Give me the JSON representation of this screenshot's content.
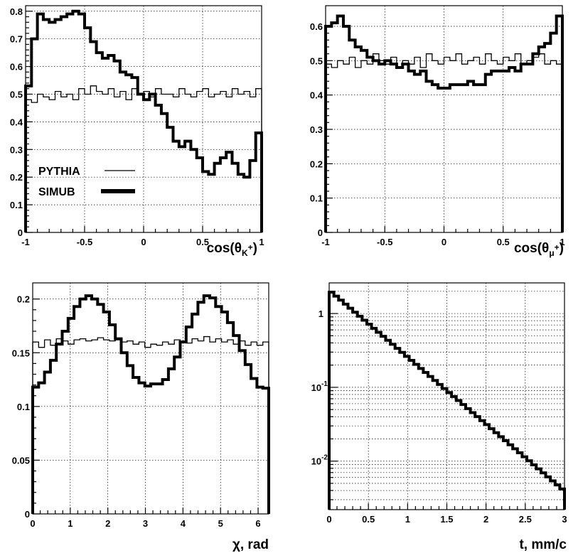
{
  "chart_data": [
    {
      "type": "line",
      "xlabel": "cos(θ_K+)",
      "xlabel_parts": {
        "base": "cos(θ",
        "sub": "K",
        "sup": "+",
        "close": ")"
      },
      "xlim": [
        -1,
        1
      ],
      "ylim": [
        0,
        0.82
      ],
      "x_ticks": [
        "-1",
        "-0.5",
        "0",
        "0.5",
        "1"
      ],
      "x_tick_values": [
        -1,
        -0.5,
        0,
        0.5,
        1
      ],
      "y_ticks": [
        "0",
        "0.1",
        "0.2",
        "0.3",
        "0.4",
        "0.5",
        "0.6",
        "0.7",
        "0.8"
      ],
      "y_tick_values": [
        0,
        0.1,
        0.2,
        0.3,
        0.4,
        0.5,
        0.6,
        0.7,
        0.8
      ],
      "grid": true,
      "legend": {
        "placement": "bottom-left",
        "entries": [
          {
            "label": "PYTHIA",
            "style": "thin"
          },
          {
            "label": "SIMUB",
            "style": "thick"
          }
        ]
      },
      "series": [
        {
          "name": "PYTHIA",
          "style": "thin",
          "x_range": [
            -1,
            1
          ],
          "values": [
            0.48,
            0.47,
            0.5,
            0.49,
            0.48,
            0.51,
            0.49,
            0.5,
            0.48,
            0.52,
            0.5,
            0.53,
            0.51,
            0.5,
            0.52,
            0.49,
            0.51,
            0.48,
            0.52,
            0.5,
            0.51,
            0.49,
            0.52,
            0.5,
            0.5,
            0.49,
            0.52,
            0.5,
            0.49,
            0.51,
            0.52,
            0.49,
            0.5,
            0.51,
            0.49,
            0.52,
            0.5,
            0.51,
            0.49,
            0.52
          ]
        },
        {
          "name": "SIMUB",
          "style": "thick",
          "x_range": [
            -1,
            1
          ],
          "values": [
            0.53,
            0.7,
            0.79,
            0.77,
            0.76,
            0.77,
            0.78,
            0.79,
            0.8,
            0.79,
            0.74,
            0.69,
            0.65,
            0.63,
            0.64,
            0.62,
            0.58,
            0.57,
            0.56,
            0.5,
            0.48,
            0.5,
            0.46,
            0.43,
            0.38,
            0.33,
            0.31,
            0.33,
            0.3,
            0.27,
            0.22,
            0.21,
            0.25,
            0.27,
            0.29,
            0.25,
            0.21,
            0.2,
            0.26,
            0.36
          ]
        }
      ]
    },
    {
      "type": "line",
      "xlabel": "cos(θ_μ+)",
      "xlabel_parts": {
        "base": "cos(θ",
        "sub": "μ",
        "sup": "+",
        "close": ")"
      },
      "xlim": [
        -1,
        1
      ],
      "ylim": [
        0,
        0.66
      ],
      "x_ticks": [
        "-1",
        "-0.5",
        "0",
        "0.5",
        "1"
      ],
      "x_tick_values": [
        -1,
        -0.5,
        0,
        0.5,
        1
      ],
      "y_ticks": [
        "0",
        "0.1",
        "0.2",
        "0.3",
        "0.4",
        "0.5",
        "0.6"
      ],
      "y_tick_values": [
        0,
        0.1,
        0.2,
        0.3,
        0.4,
        0.5,
        0.6
      ],
      "grid": true,
      "series": [
        {
          "name": "PYTHIA",
          "style": "thin",
          "x_range": [
            -1,
            1
          ],
          "values": [
            0.49,
            0.48,
            0.5,
            0.49,
            0.51,
            0.48,
            0.5,
            0.49,
            0.52,
            0.5,
            0.49,
            0.51,
            0.48,
            0.5,
            0.49,
            0.51,
            0.48,
            0.52,
            0.5,
            0.49,
            0.51,
            0.5,
            0.52,
            0.49,
            0.5,
            0.51,
            0.49,
            0.52,
            0.5,
            0.49,
            0.51,
            0.5,
            0.52,
            0.49,
            0.5,
            0.51,
            0.52,
            0.49,
            0.5,
            0.49
          ]
        },
        {
          "name": "SIMUB",
          "style": "thick",
          "x_range": [
            -1,
            1
          ],
          "values": [
            0.6,
            0.61,
            0.63,
            0.6,
            0.56,
            0.54,
            0.53,
            0.51,
            0.5,
            0.49,
            0.5,
            0.49,
            0.48,
            0.49,
            0.47,
            0.46,
            0.47,
            0.44,
            0.43,
            0.42,
            0.42,
            0.43,
            0.43,
            0.43,
            0.44,
            0.43,
            0.43,
            0.46,
            0.47,
            0.47,
            0.47,
            0.48,
            0.47,
            0.49,
            0.49,
            0.52,
            0.54,
            0.55,
            0.58,
            0.63
          ]
        }
      ]
    },
    {
      "type": "line",
      "xlabel": "χ, rad",
      "xlim": [
        0,
        6.283
      ],
      "ylim": [
        0,
        0.215
      ],
      "x_ticks": [
        "0",
        "1",
        "2",
        "3",
        "4",
        "5",
        "6"
      ],
      "x_tick_values": [
        0,
        1,
        2,
        3,
        4,
        5,
        6
      ],
      "y_ticks": [
        "0",
        "0.05",
        "0.1",
        "0.15",
        "0.2"
      ],
      "y_tick_values": [
        0,
        0.05,
        0.1,
        0.15,
        0.2
      ],
      "grid": true,
      "series": [
        {
          "name": "PYTHIA",
          "style": "thin",
          "x_range": [
            0,
            6.283
          ],
          "values": [
            0.16,
            0.155,
            0.162,
            0.157,
            0.163,
            0.161,
            0.158,
            0.162,
            0.163,
            0.161,
            0.162,
            0.164,
            0.162,
            0.161,
            0.162,
            0.16,
            0.161,
            0.158,
            0.16,
            0.155,
            0.158,
            0.157,
            0.16,
            0.158,
            0.162,
            0.16,
            0.159,
            0.163,
            0.161,
            0.165,
            0.16,
            0.163,
            0.16,
            0.162,
            0.158,
            0.161,
            0.157,
            0.16,
            0.157,
            0.16
          ]
        },
        {
          "name": "SIMUB",
          "style": "thick",
          "x_range": [
            0,
            6.283
          ],
          "values": [
            0.118,
            0.122,
            0.132,
            0.143,
            0.158,
            0.17,
            0.182,
            0.193,
            0.2,
            0.203,
            0.2,
            0.195,
            0.188,
            0.176,
            0.163,
            0.15,
            0.138,
            0.127,
            0.122,
            0.119,
            0.121,
            0.121,
            0.125,
            0.135,
            0.146,
            0.16,
            0.174,
            0.186,
            0.197,
            0.203,
            0.201,
            0.193,
            0.188,
            0.178,
            0.166,
            0.152,
            0.139,
            0.126,
            0.118,
            0.117
          ]
        }
      ]
    },
    {
      "type": "line",
      "log_y": true,
      "xlabel": "t, mm/c",
      "xlim": [
        0,
        3
      ],
      "ylim": [
        0.0022,
        2.6
      ],
      "x_ticks": [
        "0",
        "0.5",
        "1",
        "1.5",
        "2",
        "2.5",
        "3"
      ],
      "x_tick_values": [
        0,
        0.5,
        1,
        1.5,
        2,
        2.5,
        3
      ],
      "y_ticks": [
        {
          "base": "1",
          "exp": "",
          "value": 1
        },
        {
          "base": "10",
          "exp": "-1",
          "value": 0.1
        },
        {
          "base": "10",
          "exp": "-2",
          "value": 0.01
        }
      ],
      "grid": true,
      "series": [
        {
          "name": "PYTHIA",
          "style": "thin",
          "x_range": [
            0,
            3
          ],
          "decay": "exponential",
          "y_start": 1.95,
          "y_end": 0.0042,
          "bins": 50
        },
        {
          "name": "SIMUB",
          "style": "thick",
          "x_range": [
            0,
            3
          ],
          "decay": "exponential",
          "y_start": 1.95,
          "y_end": 0.0042,
          "bins": 50
        }
      ]
    }
  ]
}
